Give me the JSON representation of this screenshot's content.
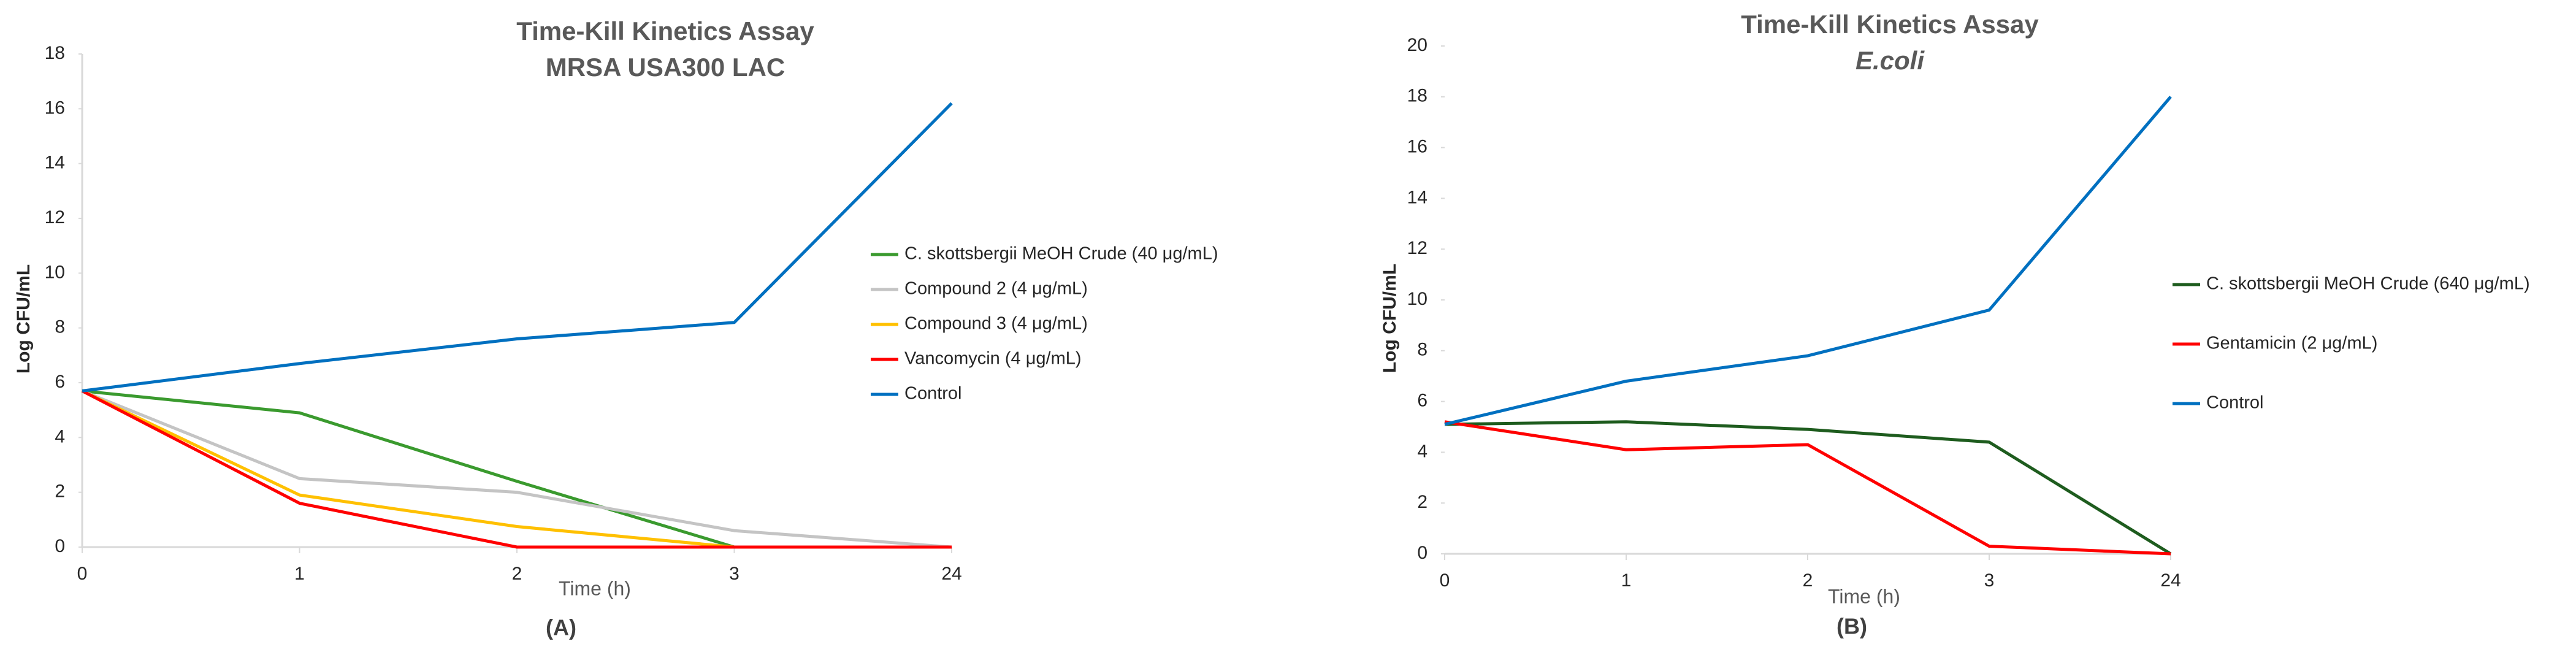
{
  "chart_data": [
    {
      "type": "line",
      "title": "Time-Kill Kinetics Assay",
      "subtitle": "MRSA USA300 LAC",
      "x_label": "Time (h)",
      "y_label": "Log  CFU/mL",
      "caption": "(A)",
      "categories": [
        "0",
        "1",
        "2",
        "3",
        "24"
      ],
      "ylim": [
        0,
        18
      ],
      "yticks": [
        0,
        2,
        4,
        6,
        8,
        10,
        12,
        14,
        16,
        18
      ],
      "series": [
        {
          "name": "C. skottsbergii MeOH Crude  (40 μg/mL)",
          "color": "#3a9a2e",
          "values": [
            5.7,
            4.9,
            2.4,
            0,
            0
          ]
        },
        {
          "name": "Compound 2   (4 μg/mL)",
          "color": "#c4c4c4",
          "values": [
            5.7,
            2.5,
            2.0,
            0.6,
            0
          ]
        },
        {
          "name": "Compound 3   (4 μg/mL)",
          "color": "#ffc000",
          "values": [
            5.7,
            1.9,
            0.75,
            0,
            0
          ]
        },
        {
          "name": "Vancomycin  (4 μg/mL)",
          "color": "#ff0000",
          "values": [
            5.7,
            1.6,
            0,
            0,
            0
          ]
        },
        {
          "name": "Control",
          "color": "#0070c0",
          "values": [
            5.7,
            6.7,
            7.6,
            8.2,
            16.2
          ]
        }
      ]
    },
    {
      "type": "line",
      "title": "Time-Kill Kinetics Assay",
      "subtitle": "E.coli",
      "x_label": "Time (h)",
      "y_label": "Log CFU/mL",
      "caption": "(B)",
      "categories": [
        "0",
        "1",
        "2",
        "3",
        "24"
      ],
      "ylim": [
        0,
        20
      ],
      "yticks": [
        0,
        2,
        4,
        6,
        8,
        10,
        12,
        14,
        16,
        18,
        20
      ],
      "series": [
        {
          "name": "C. skottsbergii MeOH Crude  (640 μg/mL)",
          "color": "#1e5c1e",
          "values": [
            5.1,
            5.2,
            4.9,
            4.4,
            0
          ]
        },
        {
          "name": "Gentamicin  (2 μg/mL)",
          "color": "#ff0000",
          "values": [
            5.2,
            4.1,
            4.3,
            0.3,
            0
          ]
        },
        {
          "name": "Control",
          "color": "#0070c0",
          "values": [
            5.1,
            6.8,
            7.8,
            9.6,
            18.0
          ]
        }
      ]
    }
  ]
}
